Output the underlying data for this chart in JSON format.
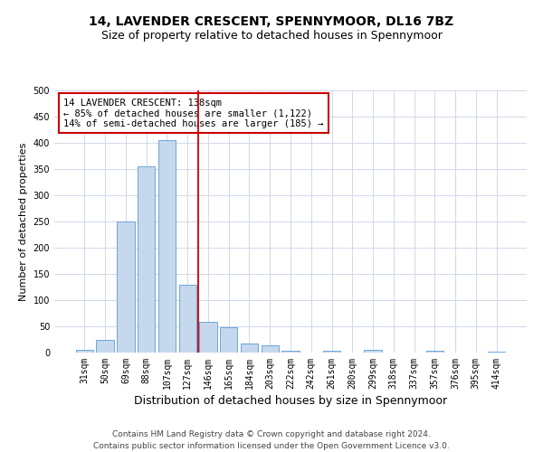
{
  "title": "14, LAVENDER CRESCENT, SPENNYMOOR, DL16 7BZ",
  "subtitle": "Size of property relative to detached houses in Spennymoor",
  "xlabel": "Distribution of detached houses by size in Spennymoor",
  "ylabel": "Number of detached properties",
  "categories": [
    "31sqm",
    "50sqm",
    "69sqm",
    "88sqm",
    "107sqm",
    "127sqm",
    "146sqm",
    "165sqm",
    "184sqm",
    "203sqm",
    "222sqm",
    "242sqm",
    "261sqm",
    "280sqm",
    "299sqm",
    "318sqm",
    "337sqm",
    "357sqm",
    "376sqm",
    "395sqm",
    "414sqm"
  ],
  "values": [
    5,
    25,
    250,
    355,
    405,
    130,
    58,
    48,
    17,
    13,
    4,
    0,
    3,
    0,
    6,
    0,
    0,
    3,
    0,
    0,
    2
  ],
  "bar_color": "#c5d8ed",
  "bar_edge_color": "#5b9bd5",
  "grid_color": "#d0d8e8",
  "vline_x": 5.5,
  "vline_color": "#cc0000",
  "annotation_text": "14 LAVENDER CRESCENT: 138sqm\n← 85% of detached houses are smaller (1,122)\n14% of semi-detached houses are larger (185) →",
  "annotation_box_color": "#ffffff",
  "annotation_box_edge": "#cc0000",
  "ylim": [
    0,
    500
  ],
  "yticks": [
    0,
    50,
    100,
    150,
    200,
    250,
    300,
    350,
    400,
    450,
    500
  ],
  "footnote": "Contains HM Land Registry data © Crown copyright and database right 2024.\nContains public sector information licensed under the Open Government Licence v3.0.",
  "bg_color": "#ffffff",
  "title_fontsize": 10,
  "subtitle_fontsize": 9,
  "xlabel_fontsize": 9,
  "ylabel_fontsize": 8,
  "tick_fontsize": 7,
  "annot_fontsize": 7.5,
  "footnote_fontsize": 6.5
}
